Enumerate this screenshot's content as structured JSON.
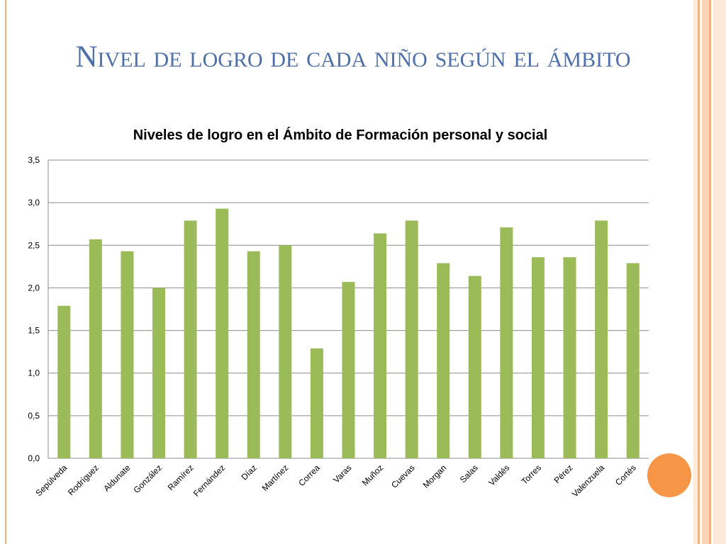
{
  "slide": {
    "title": "Nivel de logro de cada niño según el ámbito"
  },
  "colors": {
    "bar": "#9bbb59",
    "title": "#4f6fa8",
    "accent_circle": "#f79646",
    "stripes": [
      "#fde9d9",
      "#f4b183",
      "#fbd5b5",
      "#f4b183",
      "#fde9d9"
    ]
  },
  "chart_data": {
    "type": "bar",
    "title": "Niveles de logro en el Ámbito de Formación personal y social",
    "xlabel": "",
    "ylabel": "",
    "ylim": [
      0,
      3.5
    ],
    "yticks": [
      "0,0",
      "0,5",
      "1,0",
      "1,5",
      "2,0",
      "2,5",
      "3,0",
      "3,5"
    ],
    "grid": true,
    "categories": [
      "Sepúlveda",
      "Rodríguez",
      "Aldunate",
      "González",
      "Ramírez",
      "Fernández",
      "Díaz",
      "Martínez",
      "Correa",
      "Varas",
      "Muñoz",
      "Cuevas",
      "Morgan",
      "Salas",
      "Valdés",
      "Torres",
      "Pérez",
      "Valenzuela",
      "Cortés"
    ],
    "values": [
      1.79,
      2.57,
      2.43,
      2.0,
      2.79,
      2.93,
      2.43,
      2.5,
      1.29,
      2.07,
      2.64,
      2.79,
      2.29,
      2.14,
      2.71,
      2.36,
      2.36,
      2.79,
      2.29
    ]
  }
}
